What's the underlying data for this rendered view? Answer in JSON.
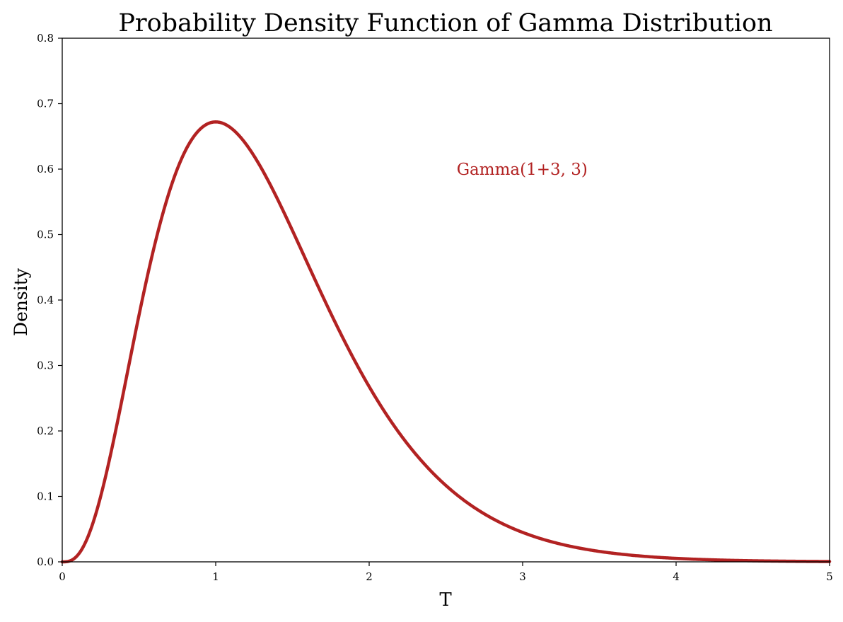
{
  "chart_data": {
    "type": "line",
    "title": "Probability Density Function of Gamma Distribution",
    "xlabel": "T",
    "ylabel": "Density",
    "xlim": [
      0,
      5
    ],
    "ylim": [
      0,
      0.8
    ],
    "x_ticks": [
      0,
      1,
      2,
      3,
      4,
      5
    ],
    "x_tick_labels": [
      "0",
      "1",
      "2",
      "3",
      "4",
      "5"
    ],
    "y_ticks": [
      0.0,
      0.1,
      0.2,
      0.3,
      0.4,
      0.5,
      0.6,
      0.7,
      0.8
    ],
    "y_tick_labels": [
      "0.0",
      "0.1",
      "0.2",
      "0.3",
      "0.4",
      "0.5",
      "0.6",
      "0.7",
      "0.8"
    ],
    "grid": false,
    "legend": "none",
    "series": [
      {
        "name": "Gamma(1+3, 3)",
        "color": "#b22222",
        "distribution": "gamma",
        "shape": 4,
        "rate": 3,
        "x": [
          0,
          0.25,
          0.5,
          0.75,
          1.0,
          1.25,
          1.5,
          1.75,
          2.0,
          2.25,
          2.5,
          2.75,
          3.0,
          3.25,
          3.5,
          3.75,
          4.0,
          4.25,
          4.5,
          4.75,
          5.0
        ],
        "y": [
          0,
          0.0994,
          0.3347,
          0.5315,
          0.6721,
          0.6601,
          0.5624,
          0.4422,
          0.3212,
          0.2197,
          0.1432,
          0.0895,
          0.054,
          0.0316,
          0.018,
          0.0101,
          0.0055,
          0.003,
          0.0016,
          0.0008,
          0.0004
        ]
      }
    ],
    "annotations": [
      {
        "text": "Gamma(1+3, 3)",
        "x": 2.57,
        "y": 0.6,
        "color": "#b22222"
      }
    ]
  }
}
